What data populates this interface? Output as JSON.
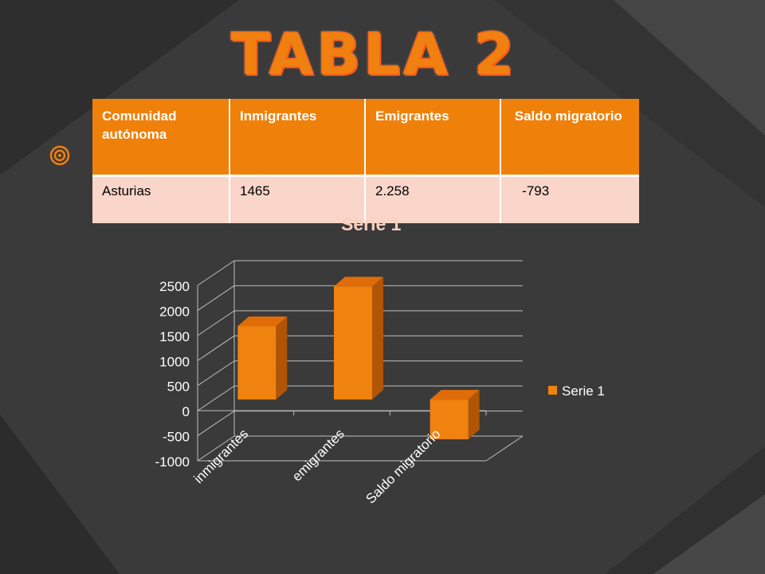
{
  "slide": {
    "title": "TABLA 2"
  },
  "table": {
    "headers": [
      "Comunidad autónoma",
      "Inmigrantes",
      "Emigrantes",
      " Saldo migratorio"
    ],
    "rows": [
      [
        "Asturias",
        "1465",
        "2.258",
        "   -793"
      ]
    ]
  },
  "chart_data": {
    "type": "bar",
    "title": "Serie 1",
    "categories": [
      "inmigrantes",
      "emigrantes",
      "Saldo migratorio"
    ],
    "series": [
      {
        "name": "Serie 1",
        "values": [
          1465,
          2258,
          -793
        ]
      }
    ],
    "ylim": [
      -1000,
      2500
    ],
    "yticks": [
      "-1000",
      "-500",
      "0",
      "500",
      "1000",
      "1500",
      "2000",
      "2500"
    ],
    "grid": true,
    "legend": "right",
    "colors": {
      "bar": "#f0820f",
      "bar_side": "#b05405",
      "bar_top": "#e06c08"
    }
  }
}
